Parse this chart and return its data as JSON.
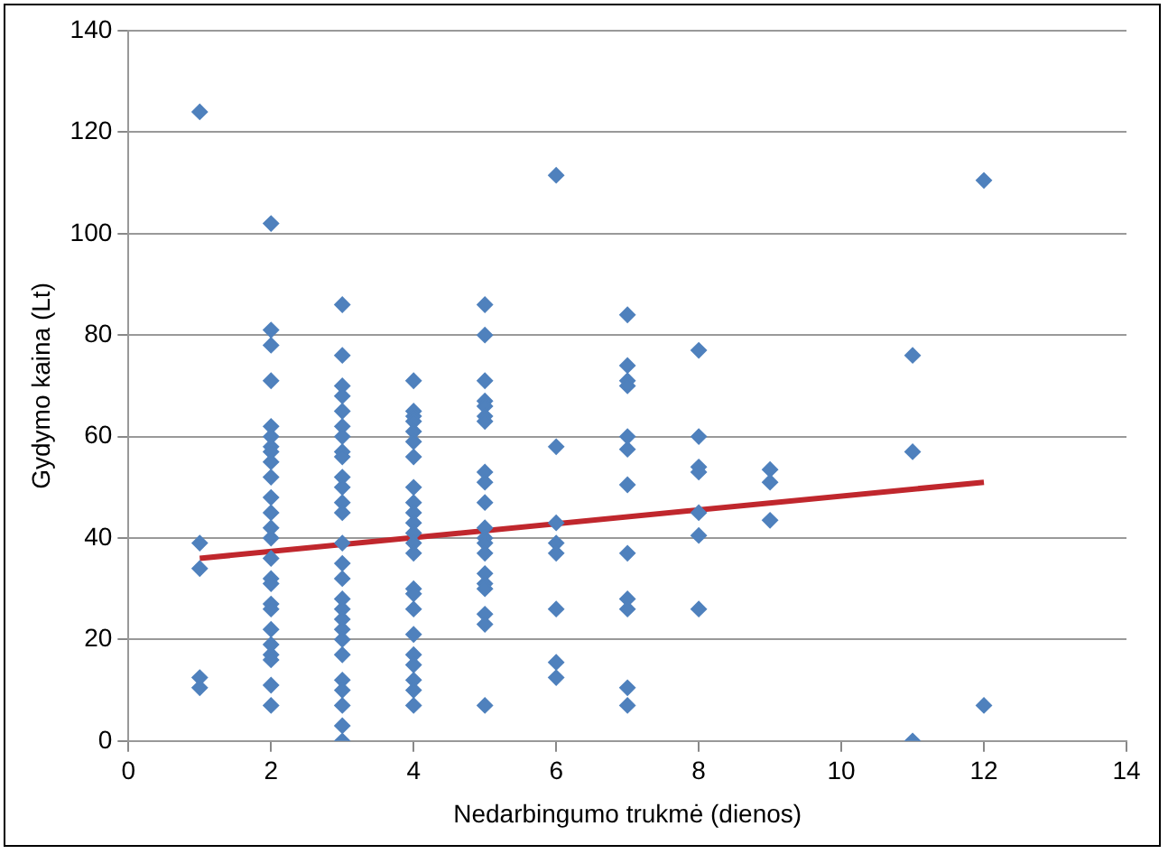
{
  "chart_data": {
    "type": "scatter",
    "xlabel": "Nedarbingumo trukmė (dienos)",
    "ylabel": "Gydymo kaina (Lt)",
    "xlim": [
      0,
      14
    ],
    "xticks": [
      0,
      2,
      4,
      6,
      8,
      10,
      12,
      14
    ],
    "ylim": [
      0,
      140
    ],
    "yticks": [
      0,
      20,
      40,
      60,
      80,
      100,
      120,
      140
    ],
    "grid": "y",
    "legend": false,
    "marker": "diamond",
    "series": [
      {
        "color": "#4f81bd",
        "x": [
          1,
          1,
          1,
          1,
          1,
          2,
          2,
          2,
          2,
          2,
          2,
          2,
          2,
          2,
          2,
          2,
          2,
          2,
          2,
          2,
          2,
          2,
          2,
          2,
          2,
          2,
          2,
          2,
          2,
          2,
          3,
          3,
          3,
          3,
          3,
          3,
          3,
          3,
          3,
          3,
          3,
          3,
          3,
          3,
          3,
          3,
          3,
          3,
          3,
          3,
          3,
          3,
          3,
          3,
          3,
          3,
          3,
          4,
          4,
          4,
          4,
          4,
          4,
          4,
          4,
          4,
          4,
          4,
          4,
          4,
          4,
          4,
          4,
          4,
          4,
          4,
          4,
          4,
          4,
          4,
          5,
          5,
          5,
          5,
          5,
          5,
          5,
          5,
          5,
          5,
          5,
          5,
          5,
          5,
          5,
          5,
          5,
          5,
          5,
          5,
          6,
          6,
          6,
          6,
          6,
          6,
          6,
          6,
          7,
          7,
          7,
          7,
          7,
          7,
          7,
          7,
          7,
          7,
          7,
          7,
          8,
          8,
          8,
          8,
          8,
          8,
          8,
          9,
          9,
          9,
          11,
          11,
          11,
          12,
          12
        ],
        "values": [
          124,
          39,
          34,
          12.5,
          10.5,
          102,
          81,
          78,
          71,
          62,
          60,
          58,
          57,
          55,
          52,
          48,
          45,
          42,
          40,
          36,
          32,
          31,
          27,
          26,
          22,
          19,
          17,
          16,
          11,
          7,
          86,
          76,
          70,
          68,
          65,
          62,
          60,
          57,
          56,
          52,
          50,
          47,
          45,
          39,
          35,
          32,
          28,
          26,
          24,
          22,
          20,
          17,
          12,
          10,
          7,
          3,
          0,
          71,
          65,
          64,
          63,
          61,
          59,
          56,
          50,
          47,
          45,
          43,
          41,
          39,
          37,
          30,
          29,
          26,
          21,
          17,
          15,
          12,
          10,
          7,
          86,
          80,
          71,
          67,
          66,
          64,
          63,
          53,
          51,
          47,
          42,
          40,
          39,
          37,
          33,
          31,
          30,
          25,
          23,
          7,
          111.5,
          58,
          43,
          39,
          37,
          26,
          15.5,
          12.5,
          84,
          74,
          71,
          70,
          60,
          57.5,
          50.5,
          37,
          28,
          26,
          10.5,
          7,
          77,
          60,
          54,
          53,
          45,
          40.5,
          26,
          53.5,
          51,
          43.5,
          76,
          57,
          0,
          110.5,
          7
        ]
      },
      {
        "type": "line",
        "color": "#c0272d",
        "marker": "none",
        "x": [
          1,
          12
        ],
        "values": [
          36,
          51
        ]
      }
    ]
  }
}
